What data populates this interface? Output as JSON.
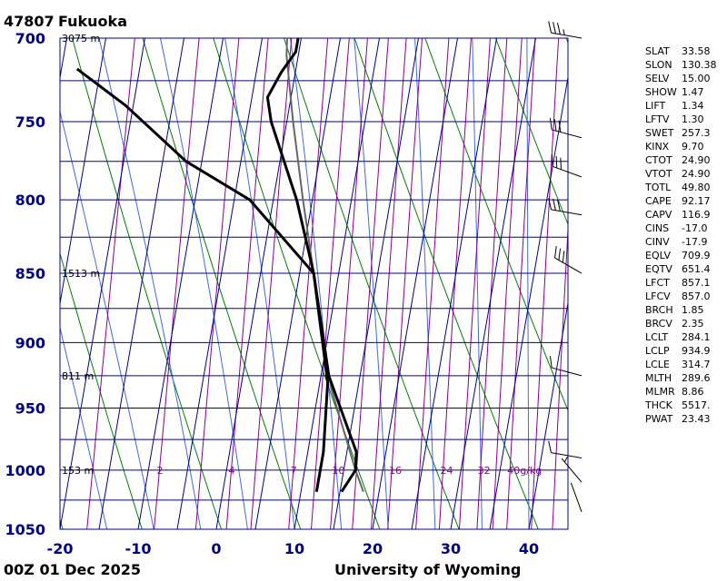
{
  "chart_data": {
    "type": "skew-t",
    "station_id": "47807",
    "station_name": "Fukuoka",
    "time_label": "00Z 01 Dec 2025",
    "source": "University of Wyoming",
    "pressure_levels": [
      700,
      750,
      800,
      850,
      900,
      950,
      1000,
      1050
    ],
    "temperature_ticks": [
      -20,
      -10,
      0,
      10,
      20,
      30,
      40
    ],
    "temperature_range": [
      -20,
      45
    ],
    "pressure_range": [
      700,
      1050
    ],
    "height_labels": [
      {
        "p": 700,
        "text": "3075 m"
      },
      {
        "p": 850,
        "text": "1513 m"
      },
      {
        "p": 925,
        "text": "811 m"
      },
      {
        "p": 1000,
        "text": "153 m"
      }
    ],
    "mixing_ratio_labels": [
      "2",
      "4",
      "7",
      "10",
      "16",
      "24",
      "32",
      "40g/kg"
    ],
    "mixing_ratio_values": [
      2,
      4,
      7,
      10,
      16,
      24,
      32,
      40
    ],
    "temperature_profile": [
      {
        "p": 1018,
        "t": 15.2
      },
      {
        "p": 1000,
        "t": 16.5
      },
      {
        "p": 985,
        "t": 16.2
      },
      {
        "p": 925,
        "t": 11.0
      },
      {
        "p": 850,
        "t": 6.8
      },
      {
        "p": 800,
        "t": 3.0
      },
      {
        "p": 750,
        "t": -2.0
      },
      {
        "p": 735,
        "t": -3.0
      },
      {
        "p": 720,
        "t": -1.8
      },
      {
        "p": 708,
        "t": -0.4
      },
      {
        "p": 700,
        "t": -0.4
      }
    ],
    "dewpoint_profile": [
      {
        "p": 1018,
        "t": 12.0
      },
      {
        "p": 985,
        "t": 12.0
      },
      {
        "p": 930,
        "t": 11.0
      },
      {
        "p": 850,
        "t": 6.8
      },
      {
        "p": 800,
        "t": -3.0
      },
      {
        "p": 775,
        "t": -12.0
      },
      {
        "p": 740,
        "t": -21.0
      },
      {
        "p": 718,
        "t": -28.0
      }
    ],
    "parcel_profile": [
      {
        "p": 1018,
        "t": 18.0
      },
      {
        "p": 1000,
        "t": 16.5
      },
      {
        "p": 935,
        "t": 11.6
      },
      {
        "p": 850,
        "t": 6.8
      },
      {
        "p": 800,
        "t": 3.8
      },
      {
        "p": 750,
        "t": 0.8
      },
      {
        "p": 710,
        "t": -1.5
      },
      {
        "p": 700,
        "t": -1.8
      }
    ],
    "wind_barbs": [
      {
        "p": 700,
        "dir": 280,
        "speed_kt": 35
      },
      {
        "p": 760,
        "dir": 285,
        "speed_kt": 30
      },
      {
        "p": 785,
        "dir": 290,
        "speed_kt": 30
      },
      {
        "p": 810,
        "dir": 280,
        "speed_kt": 30
      },
      {
        "p": 850,
        "dir": 300,
        "speed_kt": 30
      },
      {
        "p": 925,
        "dir": 285,
        "speed_kt": 10
      },
      {
        "p": 990,
        "dir": 280,
        "speed_kt": 10
      },
      {
        "p": 1010,
        "dir": 320,
        "speed_kt": 5
      },
      {
        "p": 1035,
        "dir": 340,
        "speed_kt": 0
      }
    ]
  },
  "indices": [
    {
      "name": "SLAT",
      "value": "33.58"
    },
    {
      "name": "SLON",
      "value": "130.38"
    },
    {
      "name": "SELV",
      "value": "15.00"
    },
    {
      "name": "SHOW",
      "value": "1.47"
    },
    {
      "name": "LIFT",
      "value": "1.34"
    },
    {
      "name": "LFTV",
      "value": "1.30"
    },
    {
      "name": "SWET",
      "value": "257.3"
    },
    {
      "name": "KINX",
      "value": "9.70"
    },
    {
      "name": "CTOT",
      "value": "24.90"
    },
    {
      "name": "VTOT",
      "value": "24.90"
    },
    {
      "name": "TOTL",
      "value": "49.80"
    },
    {
      "name": "CAPE",
      "value": "92.17"
    },
    {
      "name": "CAPV",
      "value": "116.9"
    },
    {
      "name": "CINS",
      "value": "-17.0"
    },
    {
      "name": "CINV",
      "value": "-17.9"
    },
    {
      "name": "EQLV",
      "value": "709.9"
    },
    {
      "name": "EQTV",
      "value": "651.4"
    },
    {
      "name": "LFCT",
      "value": "857.1"
    },
    {
      "name": "LFCV",
      "value": "857.0"
    },
    {
      "name": "BRCH",
      "value": "1.85"
    },
    {
      "name": "BRCV",
      "value": "2.35"
    },
    {
      "name": "LCLT",
      "value": "284.1"
    },
    {
      "name": "LCLP",
      "value": "934.9"
    },
    {
      "name": "LCLE",
      "value": "314.7"
    },
    {
      "name": "MLTH",
      "value": "289.6"
    },
    {
      "name": "MLMR",
      "value": "8.86"
    },
    {
      "name": "THCK",
      "value": "5517."
    },
    {
      "name": "PWAT",
      "value": "23.43"
    }
  ],
  "colors": {
    "grid": "#00008b",
    "temperature": "#000000",
    "parcel": "#666666",
    "dry_adiabat": "#008000",
    "moist_adiabat": "#4169e1",
    "mixing_ratio": "#8b008b",
    "labels": "#00008b"
  }
}
